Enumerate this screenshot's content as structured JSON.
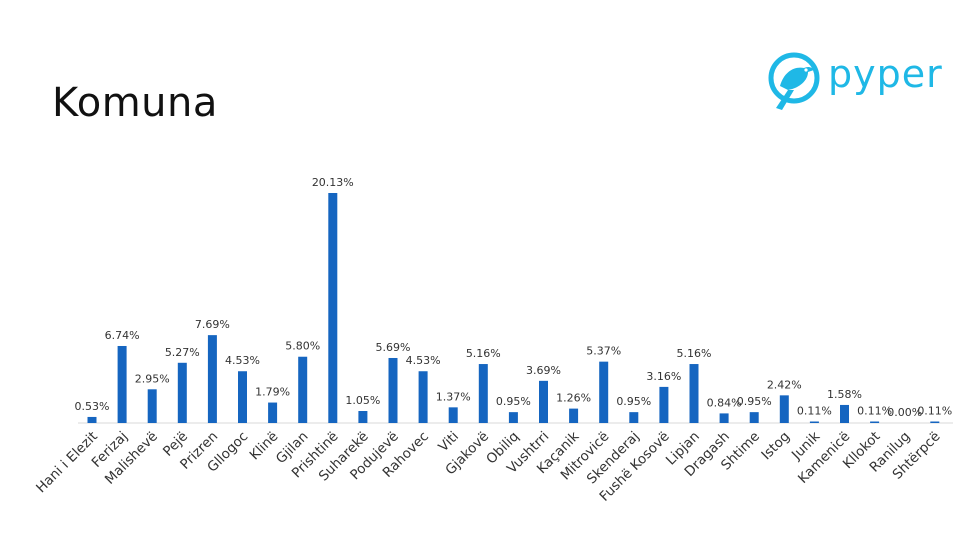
{
  "title": "Komuna",
  "logo": {
    "text": "pyper",
    "icon": "bird-icon",
    "color": "#1fb8e6"
  },
  "chart_data": {
    "type": "bar",
    "bar_color": "#1565c0",
    "categories": [
      "Hani i Elezit",
      "Ferizaj",
      "Malishevë",
      "Pejë",
      "Prizren",
      "Gllogoc",
      "Klinë",
      "Gjilan",
      "Prishtinë",
      "Suharekë",
      "Podujevë",
      "Rahovec",
      "Viti",
      "Gjakovë",
      "Obiliq",
      "Vushtrri",
      "Kaçanik",
      "Mitrovicë",
      "Skenderaj",
      "Fushë Kosovë",
      "Lipjan",
      "Dragash",
      "Shtime",
      "Istog",
      "Junik",
      "Kamenicë",
      "Kllokot",
      "Ranilug",
      "Shtërpcë"
    ],
    "values": [
      0.53,
      6.74,
      2.95,
      5.27,
      7.69,
      4.53,
      1.79,
      5.8,
      20.13,
      1.05,
      5.69,
      4.53,
      1.37,
      5.16,
      0.95,
      3.69,
      1.26,
      5.37,
      0.95,
      3.16,
      5.16,
      0.84,
      0.95,
      2.42,
      0.11,
      1.58,
      0.11,
      0.0,
      0.11
    ],
    "labels": [
      "0.53%",
      "6.74%",
      "2.95%",
      "5.27%",
      "7.69%",
      "4.53%",
      "1.79%",
      "5.80%",
      "20.13%",
      "1.05%",
      "5.69%",
      "4.53%",
      "1.37%",
      "5.16%",
      "0.95%",
      "3.69%",
      "1.26%",
      "5.37%",
      "0.95%",
      "3.16%",
      "5.16%",
      "0.84%",
      "0.95%",
      "2.42%",
      "0.11%",
      "1.58%",
      "0.11%",
      "0.00%",
      "0.11%"
    ],
    "ylim": [
      0,
      20.13
    ],
    "grid": false,
    "legend": "none"
  }
}
